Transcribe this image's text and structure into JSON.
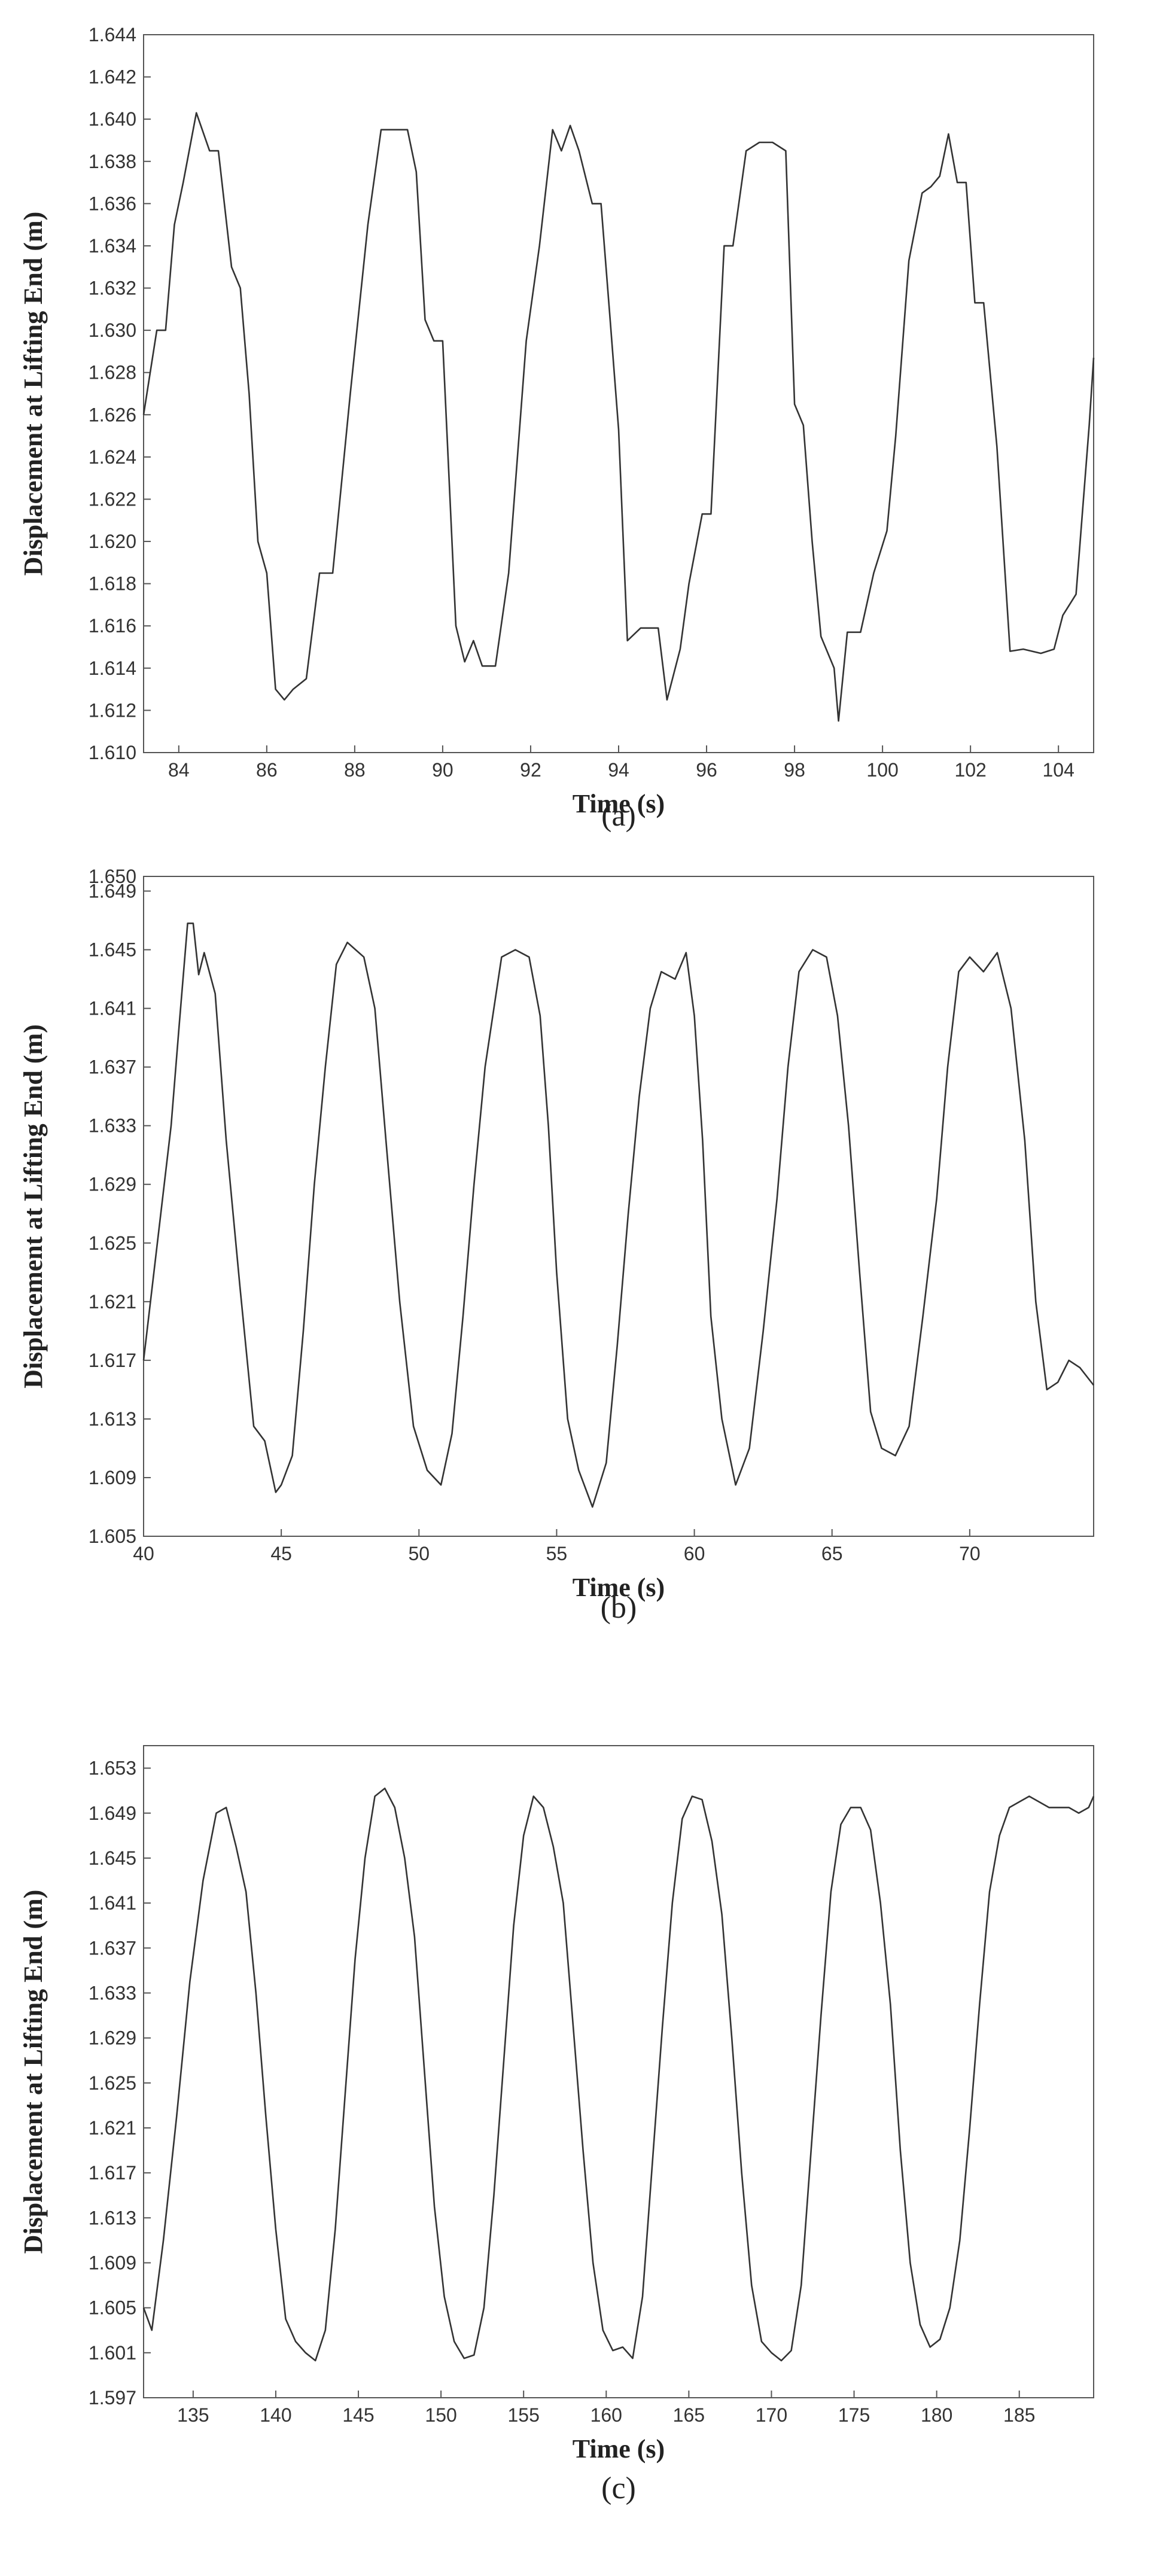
{
  "chart_data": [
    {
      "type": "line",
      "panel_label": "(a)",
      "xlabel": "Time (s)",
      "ylabel": "Displacement at Lifting End (m)",
      "xlim": [
        83.2,
        104.8
      ],
      "ylim": [
        1.61,
        1.644
      ],
      "xticks": [
        84,
        86,
        88,
        90,
        92,
        94,
        96,
        98,
        100,
        102,
        104
      ],
      "yticks": [
        "1.610",
        "1.612",
        "1.614",
        "1.616",
        "1.618",
        "1.620",
        "1.622",
        "1.624",
        "1.626",
        "1.628",
        "1.630",
        "1.632",
        "1.634",
        "1.636",
        "1.638",
        "1.640",
        "1.642",
        "1.644"
      ],
      "grid": false,
      "line_color": "#333333",
      "series": [
        {
          "x": [
            83.2,
            83.5,
            83.7,
            83.9,
            84.1,
            84.4,
            84.7,
            84.9,
            85.2,
            85.4,
            85.6,
            85.8,
            86.0,
            86.2,
            86.4,
            86.6,
            86.9,
            87.2,
            87.5,
            87.9,
            88.3,
            88.6,
            88.9,
            89.2,
            89.4,
            89.6,
            89.8,
            90.0,
            90.1,
            90.3,
            90.5,
            90.7,
            90.9,
            91.2,
            91.5,
            91.9,
            92.2,
            92.5,
            92.7,
            92.9,
            93.1,
            93.4,
            93.6,
            93.8,
            94.0,
            94.2,
            94.5,
            94.7,
            94.9,
            95.1,
            95.4,
            95.6,
            95.9,
            96.1,
            96.4,
            96.6,
            96.9,
            97.2,
            97.5,
            97.8,
            98.0,
            98.2,
            98.4,
            98.6,
            98.9,
            99.0,
            99.2,
            99.5,
            99.8,
            100.1,
            100.3,
            100.6,
            100.9,
            101.1,
            101.3,
            101.5,
            101.7,
            101.9,
            102.1,
            102.3,
            102.6,
            102.9,
            103.2,
            103.6,
            103.9,
            104.1,
            104.4,
            104.7,
            104.8
          ],
          "y": [
            1.626,
            1.63,
            1.63,
            1.635,
            1.637,
            1.6403,
            1.6385,
            1.6385,
            1.633,
            1.632,
            1.627,
            1.62,
            1.6185,
            1.613,
            1.6125,
            1.613,
            1.6135,
            1.6185,
            1.6185,
            1.627,
            1.635,
            1.6395,
            1.6395,
            1.6395,
            1.6375,
            1.6305,
            1.6295,
            1.6295,
            1.625,
            1.616,
            1.6143,
            1.6153,
            1.6141,
            1.6141,
            1.6185,
            1.6295,
            1.634,
            1.6395,
            1.6385,
            1.6397,
            1.6385,
            1.636,
            1.636,
            1.6307,
            1.6253,
            1.6153,
            1.6159,
            1.6159,
            1.6159,
            1.6125,
            1.6149,
            1.618,
            1.6213,
            1.6213,
            1.634,
            1.634,
            1.6385,
            1.6389,
            1.6389,
            1.6385,
            1.6265,
            1.6255,
            1.62,
            1.6155,
            1.614,
            1.6115,
            1.6157,
            1.6157,
            1.6185,
            1.6205,
            1.625,
            1.6333,
            1.6365,
            1.6368,
            1.6373,
            1.6393,
            1.637,
            1.637,
            1.6313,
            1.6313,
            1.6245,
            1.6148,
            1.6149,
            1.6147,
            1.6149,
            1.6165,
            1.6175,
            1.6255,
            1.6287
          ]
        }
      ]
    },
    {
      "type": "line",
      "panel_label": "(b)",
      "xlabel": "Time (s)",
      "ylabel": "Displacement at Lifting End (m)",
      "xlim": [
        40,
        74.5
      ],
      "ylim": [
        1.605,
        1.65
      ],
      "xticks": [
        40,
        45,
        50,
        55,
        60,
        65,
        70
      ],
      "yticks": [
        "1.605",
        "1.609",
        "1.613",
        "1.617",
        "1.621",
        "1.625",
        "1.629",
        "1.633",
        "1.637",
        "1.641",
        "1.645",
        "1.649",
        "1.650"
      ],
      "grid": false,
      "line_color": "#333333",
      "series": [
        {
          "x": [
            40.0,
            40.5,
            41.0,
            41.3,
            41.6,
            41.8,
            42.0,
            42.2,
            42.6,
            43.0,
            43.5,
            44.0,
            44.4,
            44.8,
            45.0,
            45.4,
            45.8,
            46.2,
            46.6,
            47.0,
            47.4,
            47.7,
            48.0,
            48.4,
            48.8,
            49.3,
            49.8,
            50.3,
            50.8,
            51.2,
            51.6,
            52.0,
            52.4,
            53.0,
            53.5,
            54.0,
            54.4,
            54.7,
            55.0,
            55.4,
            55.8,
            56.3,
            56.8,
            57.2,
            57.6,
            58.0,
            58.4,
            58.8,
            59.3,
            59.7,
            60.0,
            60.3,
            60.6,
            61.0,
            61.5,
            62.0,
            62.5,
            63.0,
            63.4,
            63.8,
            64.3,
            64.8,
            65.2,
            65.6,
            66.0,
            66.4,
            66.8,
            67.3,
            67.8,
            68.3,
            68.8,
            69.2,
            69.6,
            70.0,
            70.5,
            71.0,
            71.5,
            72.0,
            72.4,
            72.8,
            73.2,
            73.6,
            74.0,
            74.5
          ],
          "y": [
            1.617,
            1.625,
            1.633,
            1.64,
            1.6468,
            1.6468,
            1.6433,
            1.6448,
            1.642,
            1.632,
            1.622,
            1.6125,
            1.6115,
            1.608,
            1.6085,
            1.6105,
            1.619,
            1.629,
            1.637,
            1.644,
            1.6455,
            1.645,
            1.6445,
            1.641,
            1.632,
            1.621,
            1.6125,
            1.6095,
            1.6085,
            1.612,
            1.62,
            1.629,
            1.637,
            1.6445,
            1.645,
            1.6445,
            1.6405,
            1.633,
            1.623,
            1.613,
            1.6095,
            1.607,
            1.61,
            1.618,
            1.627,
            1.635,
            1.641,
            1.6435,
            1.643,
            1.6448,
            1.6405,
            1.632,
            1.62,
            1.613,
            1.6085,
            1.611,
            1.619,
            1.628,
            1.637,
            1.6435,
            1.645,
            1.6445,
            1.6405,
            1.633,
            1.623,
            1.6135,
            1.611,
            1.6105,
            1.6125,
            1.62,
            1.628,
            1.637,
            1.6435,
            1.6445,
            1.6435,
            1.6448,
            1.641,
            1.632,
            1.621,
            1.615,
            1.6155,
            1.617,
            1.6165,
            1.6153
          ]
        }
      ]
    },
    {
      "type": "line",
      "panel_label": "(c)",
      "xlabel": "Time (s)",
      "ylabel": "Displacement at Lifting End (m)",
      "xlim": [
        132,
        189.5
      ],
      "ylim": [
        1.597,
        1.655
      ],
      "xticks": [
        135,
        140,
        145,
        150,
        155,
        160,
        165,
        170,
        175,
        180,
        185
      ],
      "yticks": [
        "1.597",
        "1.601",
        "1.605",
        "1.609",
        "1.613",
        "1.617",
        "1.621",
        "1.625",
        "1.629",
        "1.633",
        "1.637",
        "1.641",
        "1.645",
        "1.649",
        "1.653"
      ],
      "grid": false,
      "line_color": "#333333",
      "series": [
        {
          "x": [
            132.0,
            132.5,
            133.2,
            134.0,
            134.8,
            135.6,
            136.4,
            137.0,
            137.6,
            138.2,
            138.8,
            139.4,
            140.0,
            140.6,
            141.2,
            141.8,
            142.4,
            143.0,
            143.6,
            144.2,
            144.8,
            145.4,
            146.0,
            146.6,
            147.2,
            147.8,
            148.4,
            149.0,
            149.6,
            150.2,
            150.8,
            151.4,
            152.0,
            152.6,
            153.2,
            153.8,
            154.4,
            155.0,
            155.6,
            156.2,
            156.8,
            157.4,
            158.0,
            158.6,
            159.2,
            159.8,
            160.4,
            161.0,
            161.6,
            162.2,
            162.8,
            163.4,
            164.0,
            164.6,
            165.2,
            165.8,
            166.4,
            167.0,
            167.6,
            168.2,
            168.8,
            169.4,
            170.0,
            170.6,
            171.2,
            171.8,
            172.4,
            173.0,
            173.6,
            174.2,
            174.8,
            175.4,
            176.0,
            176.6,
            177.2,
            177.8,
            178.4,
            179.0,
            179.6,
            180.2,
            180.8,
            181.4,
            182.0,
            182.6,
            183.2,
            183.8,
            184.4,
            185.0,
            185.6,
            186.2,
            186.8,
            187.4,
            188.0,
            188.6,
            189.2,
            189.5
          ],
          "y": [
            1.605,
            1.603,
            1.611,
            1.622,
            1.634,
            1.643,
            1.649,
            1.6495,
            1.646,
            1.642,
            1.633,
            1.622,
            1.612,
            1.604,
            1.602,
            1.601,
            1.6003,
            1.603,
            1.612,
            1.624,
            1.636,
            1.645,
            1.6505,
            1.6512,
            1.6495,
            1.645,
            1.638,
            1.626,
            1.614,
            1.606,
            1.602,
            1.6005,
            1.6008,
            1.605,
            1.615,
            1.627,
            1.639,
            1.647,
            1.6505,
            1.6495,
            1.646,
            1.641,
            1.63,
            1.619,
            1.609,
            1.603,
            1.6012,
            1.6015,
            1.6005,
            1.606,
            1.618,
            1.63,
            1.641,
            1.6485,
            1.6505,
            1.6502,
            1.6465,
            1.64,
            1.629,
            1.617,
            1.607,
            1.602,
            1.601,
            1.6003,
            1.6012,
            1.607,
            1.619,
            1.631,
            1.642,
            1.648,
            1.6495,
            1.6495,
            1.6475,
            1.641,
            1.632,
            1.619,
            1.609,
            1.6035,
            1.6015,
            1.6022,
            1.605,
            1.611,
            1.621,
            1.632,
            1.642,
            1.647,
            1.6495,
            1.65,
            1.6505,
            1.65,
            1.6495,
            1.6495,
            1.6495,
            1.649,
            1.6495,
            1.6505
          ]
        }
      ]
    }
  ]
}
